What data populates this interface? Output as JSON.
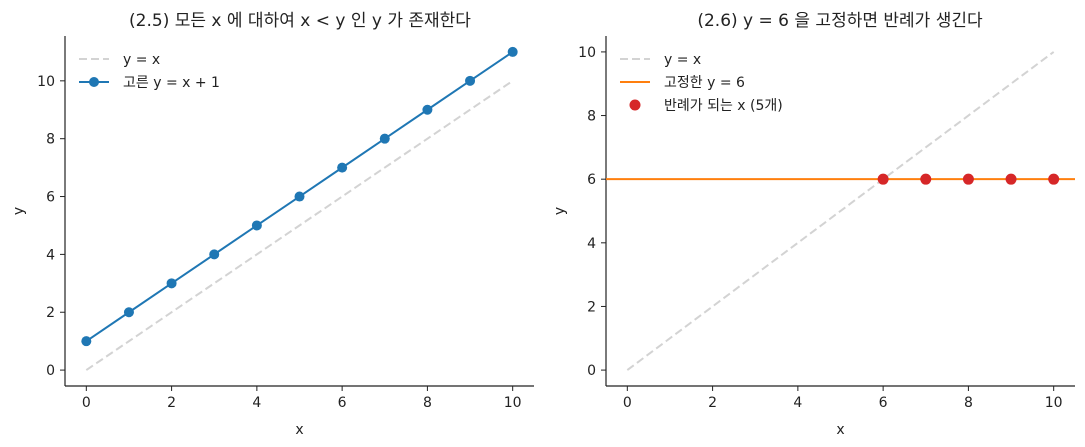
{
  "chart_data": [
    {
      "type": "line",
      "title": "(2.5)  모든 x 에 대하여 x < y 인 y 가 존재한다",
      "xlabel": "x",
      "ylabel": "y",
      "xlim": [
        -0.5,
        10.5
      ],
      "ylim": [
        -0.55,
        11.55
      ],
      "xticks": [
        0,
        2,
        4,
        6,
        8,
        10
      ],
      "yticks": [
        0,
        2,
        4,
        6,
        8,
        10
      ],
      "grid": false,
      "legend_position": "top-left",
      "series": [
        {
          "name": "y = x",
          "style": "dashed",
          "color": "#d3d3d3",
          "x": [
            0,
            10
          ],
          "y": [
            0,
            10
          ]
        },
        {
          "name": "고른 y = x + 1",
          "style": "line-markers",
          "color": "#1f77b4",
          "x": [
            0,
            1,
            2,
            3,
            4,
            5,
            6,
            7,
            8,
            9,
            10
          ],
          "y": [
            1,
            2,
            3,
            4,
            5,
            6,
            7,
            8,
            9,
            10,
            11
          ]
        }
      ]
    },
    {
      "type": "line",
      "title": "(2.6)  y = 6 을 고정하면 반례가 생긴다",
      "xlabel": "x",
      "ylabel": "y",
      "xlim": [
        -0.5,
        10.5
      ],
      "ylim": [
        -0.5,
        10.5
      ],
      "xticks": [
        0,
        2,
        4,
        6,
        8,
        10
      ],
      "yticks": [
        0,
        2,
        4,
        6,
        8,
        10
      ],
      "grid": false,
      "legend_position": "top-left",
      "series": [
        {
          "name": "y = x",
          "style": "dashed",
          "color": "#d3d3d3",
          "x": [
            0,
            10
          ],
          "y": [
            0,
            10
          ]
        },
        {
          "name": "고정한 y = 6",
          "style": "hline",
          "color": "#ff7f0e",
          "y": 6
        },
        {
          "name": "반례가 되는 x (5개)",
          "style": "scatter",
          "color": "#d62728",
          "x": [
            6,
            7,
            8,
            9,
            10
          ],
          "y": [
            6,
            6,
            6,
            6,
            6
          ]
        }
      ]
    }
  ]
}
